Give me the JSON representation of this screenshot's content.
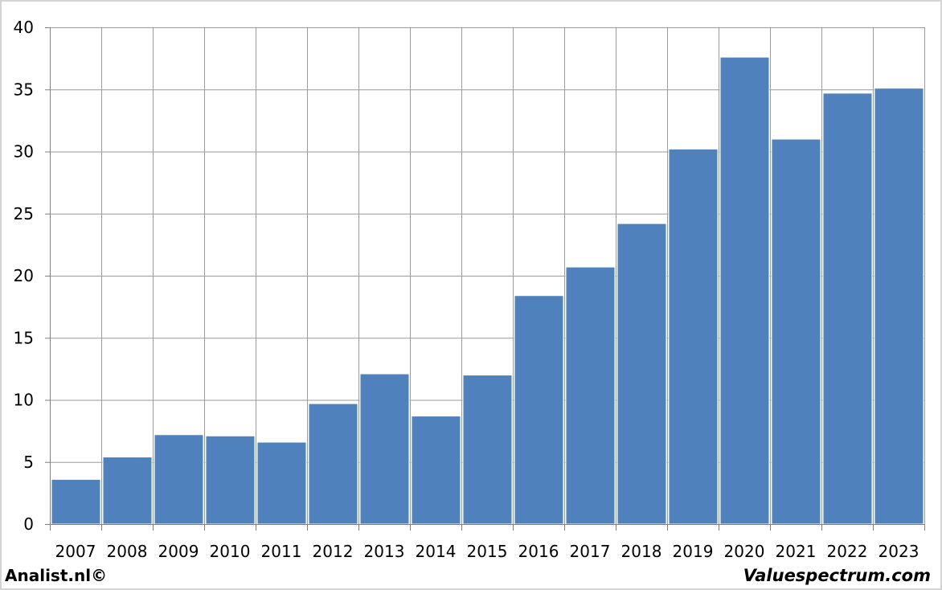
{
  "chart_data": {
    "type": "bar",
    "categories": [
      "2007",
      "2008",
      "2009",
      "2010",
      "2011",
      "2012",
      "2013",
      "2014",
      "2015",
      "2016",
      "2017",
      "2018",
      "2019",
      "2020",
      "2021",
      "2022",
      "2023"
    ],
    "values": [
      3.6,
      5.4,
      7.2,
      7.1,
      6.6,
      9.7,
      12.1,
      8.7,
      12.0,
      18.4,
      20.7,
      24.2,
      30.2,
      37.6,
      31.0,
      34.7,
      35.1
    ],
    "ylim": [
      0,
      40
    ],
    "yticks": [
      0,
      5,
      10,
      15,
      20,
      25,
      30,
      35,
      40
    ],
    "grid": true,
    "bar_color": "#4f81bd",
    "grid_color": "#9a9a9a"
  },
  "footer": {
    "left": "Analist.nl©",
    "right": "Valuespectrum.com"
  }
}
